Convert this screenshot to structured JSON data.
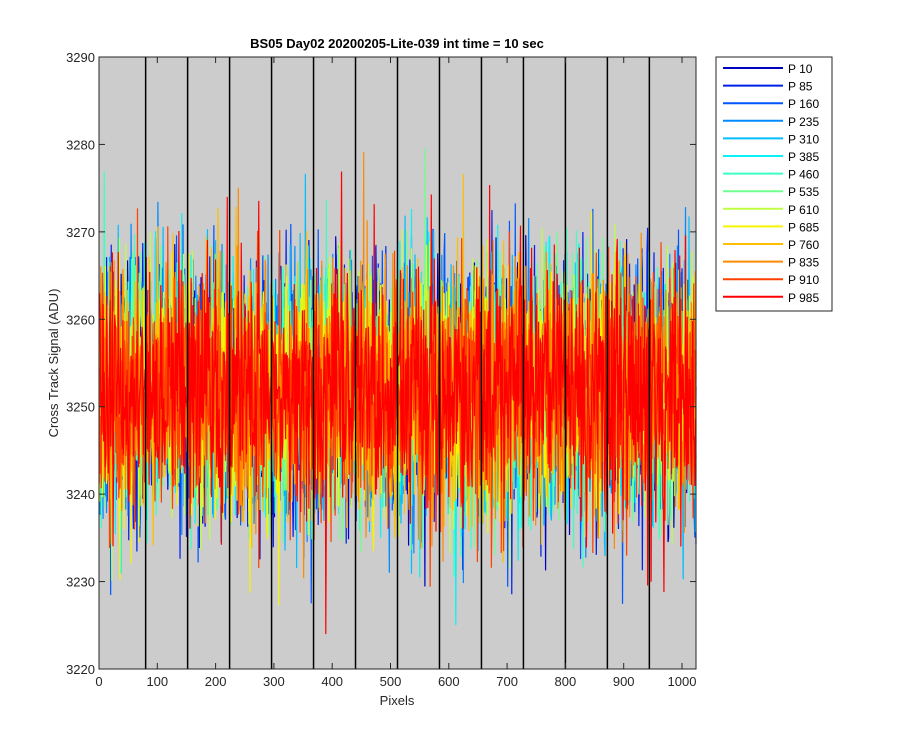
{
  "chart_data": {
    "type": "line",
    "title": "BS05 Day02 20200205-Lite-039 int time = 10 sec",
    "xlabel": "Pixels",
    "ylabel": "Cross Track Signal (ADU)",
    "xlim": [
      0,
      1024
    ],
    "ylim": [
      3220,
      3290
    ],
    "xticks": [
      0,
      100,
      200,
      300,
      400,
      500,
      600,
      700,
      800,
      900,
      1000
    ],
    "yticks": [
      3220,
      3230,
      3240,
      3250,
      3260,
      3270,
      3280,
      3290
    ],
    "grid": false,
    "background_color": "#cccccc",
    "vertical_markers": {
      "positions": [
        80,
        152,
        224,
        296,
        368,
        440,
        512,
        584,
        656,
        728,
        800,
        872,
        944
      ],
      "color": "#000000"
    },
    "legend": {
      "location": "outside-top-right"
    },
    "noise_model": {
      "mean": 3252,
      "std": 7,
      "extreme_low": 3224,
      "extreme_high": 3281,
      "points_per_series": 1024
    },
    "series": [
      {
        "name": "P 10",
        "color": "#0000bf"
      },
      {
        "name": "P 85",
        "color": "#0020ea"
      },
      {
        "name": "P 160",
        "color": "#0057ff"
      },
      {
        "name": "P 235",
        "color": "#008bff"
      },
      {
        "name": "P 310",
        "color": "#00beff"
      },
      {
        "name": "P 385",
        "color": "#09f2f6"
      },
      {
        "name": "P 460",
        "color": "#3cffc3"
      },
      {
        "name": "P 535",
        "color": "#70ff8f"
      },
      {
        "name": "P 610",
        "color": "#bfff40"
      },
      {
        "name": "P 685",
        "color": "#f5f500"
      },
      {
        "name": "P 760",
        "color": "#ffbf00"
      },
      {
        "name": "P 835",
        "color": "#ff8a00"
      },
      {
        "name": "P 910",
        "color": "#ff4000"
      },
      {
        "name": "P 985",
        "color": "#ff0000"
      }
    ]
  }
}
